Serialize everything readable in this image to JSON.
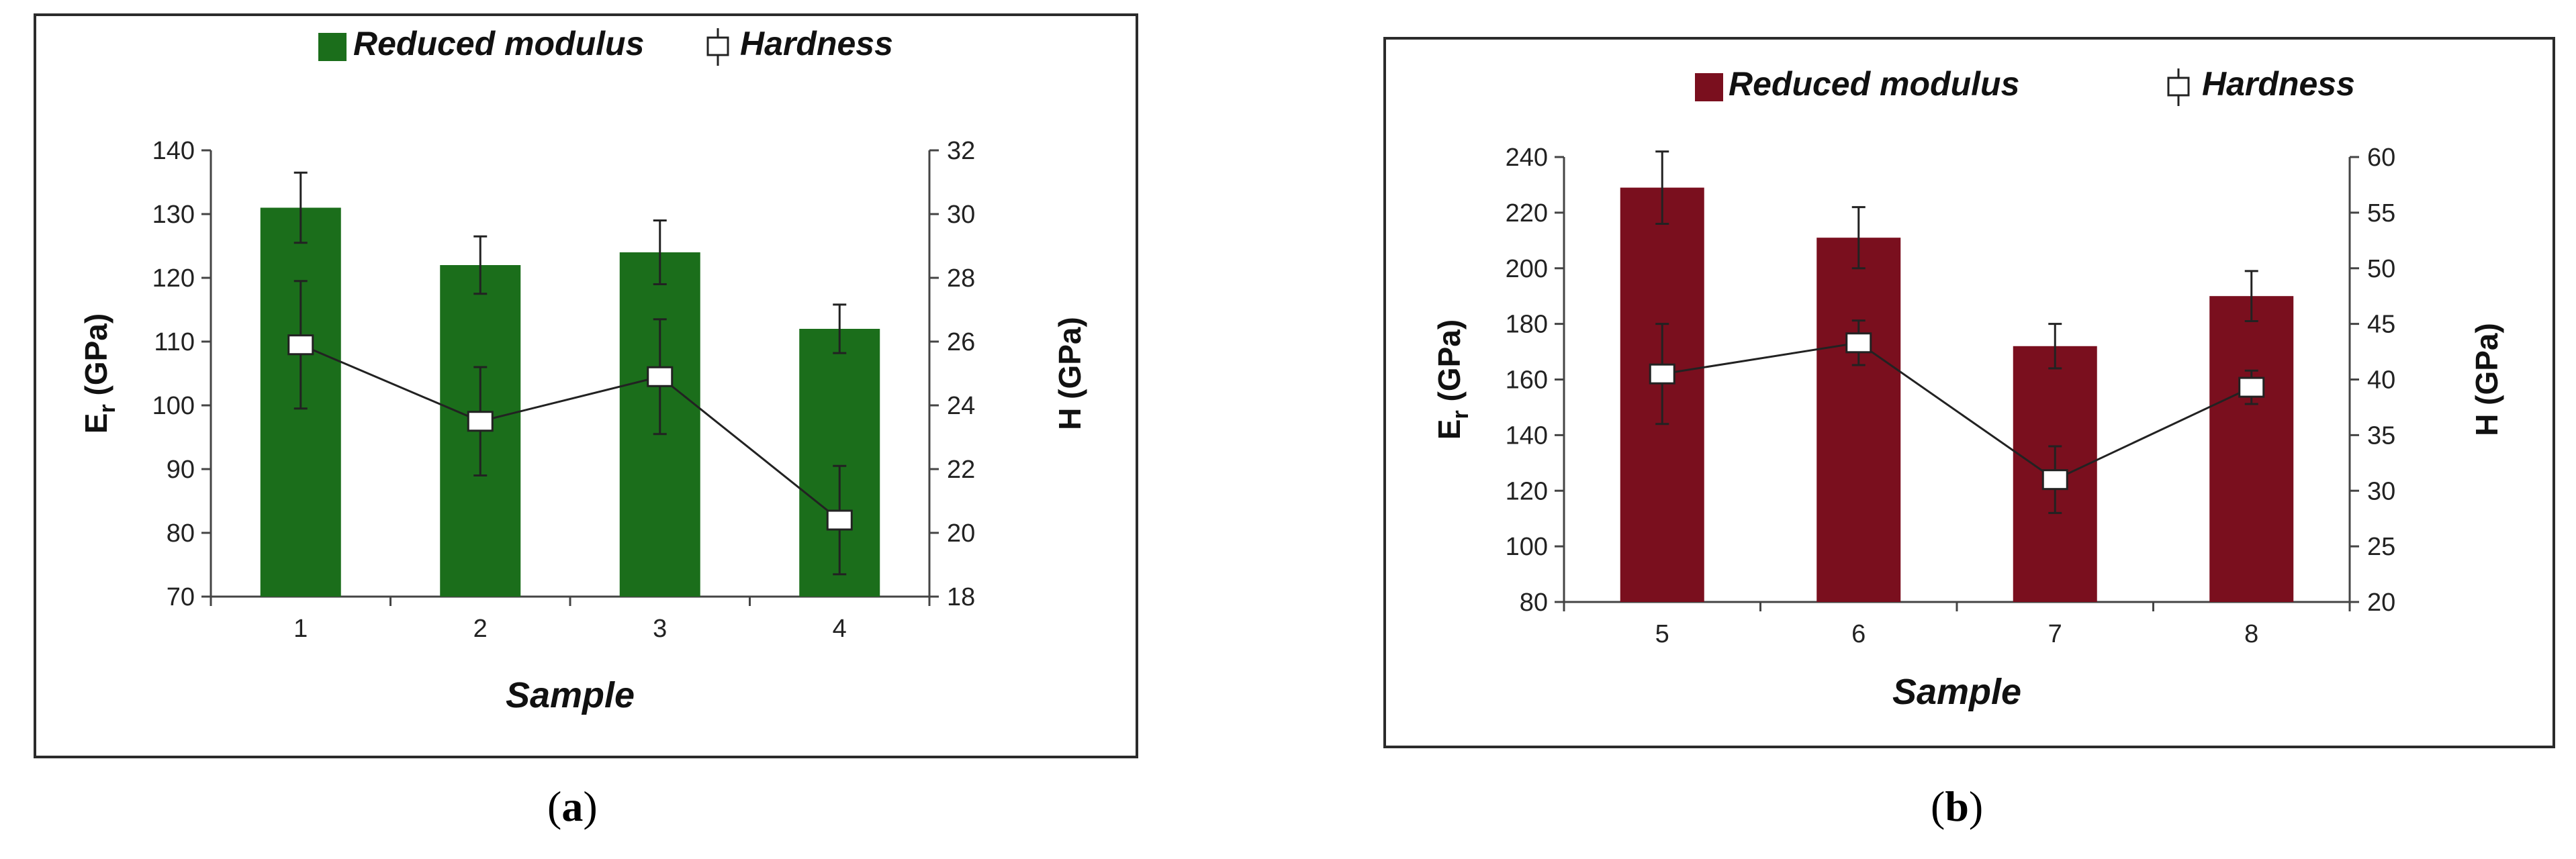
{
  "chart_data": [
    {
      "panel": "a",
      "type": "bar",
      "categories": [
        "1",
        "2",
        "3",
        "4"
      ],
      "xlabel": "Sample",
      "ylabel_main": "E",
      "ylabel_sub": "r",
      "ylabel_unit": " (GPa)",
      "ylabel_right": "H (GPa)",
      "ylim": [
        70,
        140
      ],
      "yticks": [
        70,
        80,
        90,
        100,
        110,
        120,
        130,
        140
      ],
      "ylim_right": [
        18,
        32
      ],
      "yticks_right": [
        18,
        20,
        22,
        24,
        26,
        28,
        30,
        32
      ],
      "bar_color": "#1b6e1b",
      "series": [
        {
          "name": "Reduced modulus",
          "type": "bar",
          "axis": "left",
          "values": [
            131,
            122,
            124,
            112
          ],
          "errors": [
            5.5,
            4.5,
            5,
            3.8
          ]
        },
        {
          "name": "Hardness",
          "type": "line",
          "axis": "right",
          "values": [
            25.9,
            23.5,
            24.9,
            20.4
          ],
          "errors": [
            2,
            1.7,
            1.8,
            1.7
          ]
        }
      ],
      "legend": "top-center"
    },
    {
      "panel": "b",
      "type": "bar",
      "categories": [
        "5",
        "6",
        "7",
        "8"
      ],
      "xlabel": "Sample",
      "ylabel_main": "E",
      "ylabel_sub": "r",
      "ylabel_unit": " (GPa)",
      "ylabel_right": "H (GPa)",
      "ylim": [
        80,
        240
      ],
      "yticks": [
        80,
        100,
        120,
        140,
        160,
        180,
        200,
        220,
        240
      ],
      "ylim_right": [
        20,
        60
      ],
      "yticks_right": [
        20,
        25,
        30,
        35,
        40,
        45,
        50,
        55,
        60
      ],
      "bar_color": "#7a0f1e",
      "series": [
        {
          "name": "Reduced modulus",
          "type": "bar",
          "axis": "left",
          "values": [
            229,
            211,
            172,
            190
          ],
          "errors": [
            13,
            11,
            8,
            9
          ]
        },
        {
          "name": "Hardness",
          "type": "line",
          "axis": "right",
          "values": [
            40.5,
            43.3,
            31,
            39.3
          ],
          "errors": [
            4.5,
            2,
            3,
            1.5
          ]
        }
      ],
      "legend": "top-center"
    }
  ],
  "captions": {
    "a": "a",
    "b": "b"
  }
}
